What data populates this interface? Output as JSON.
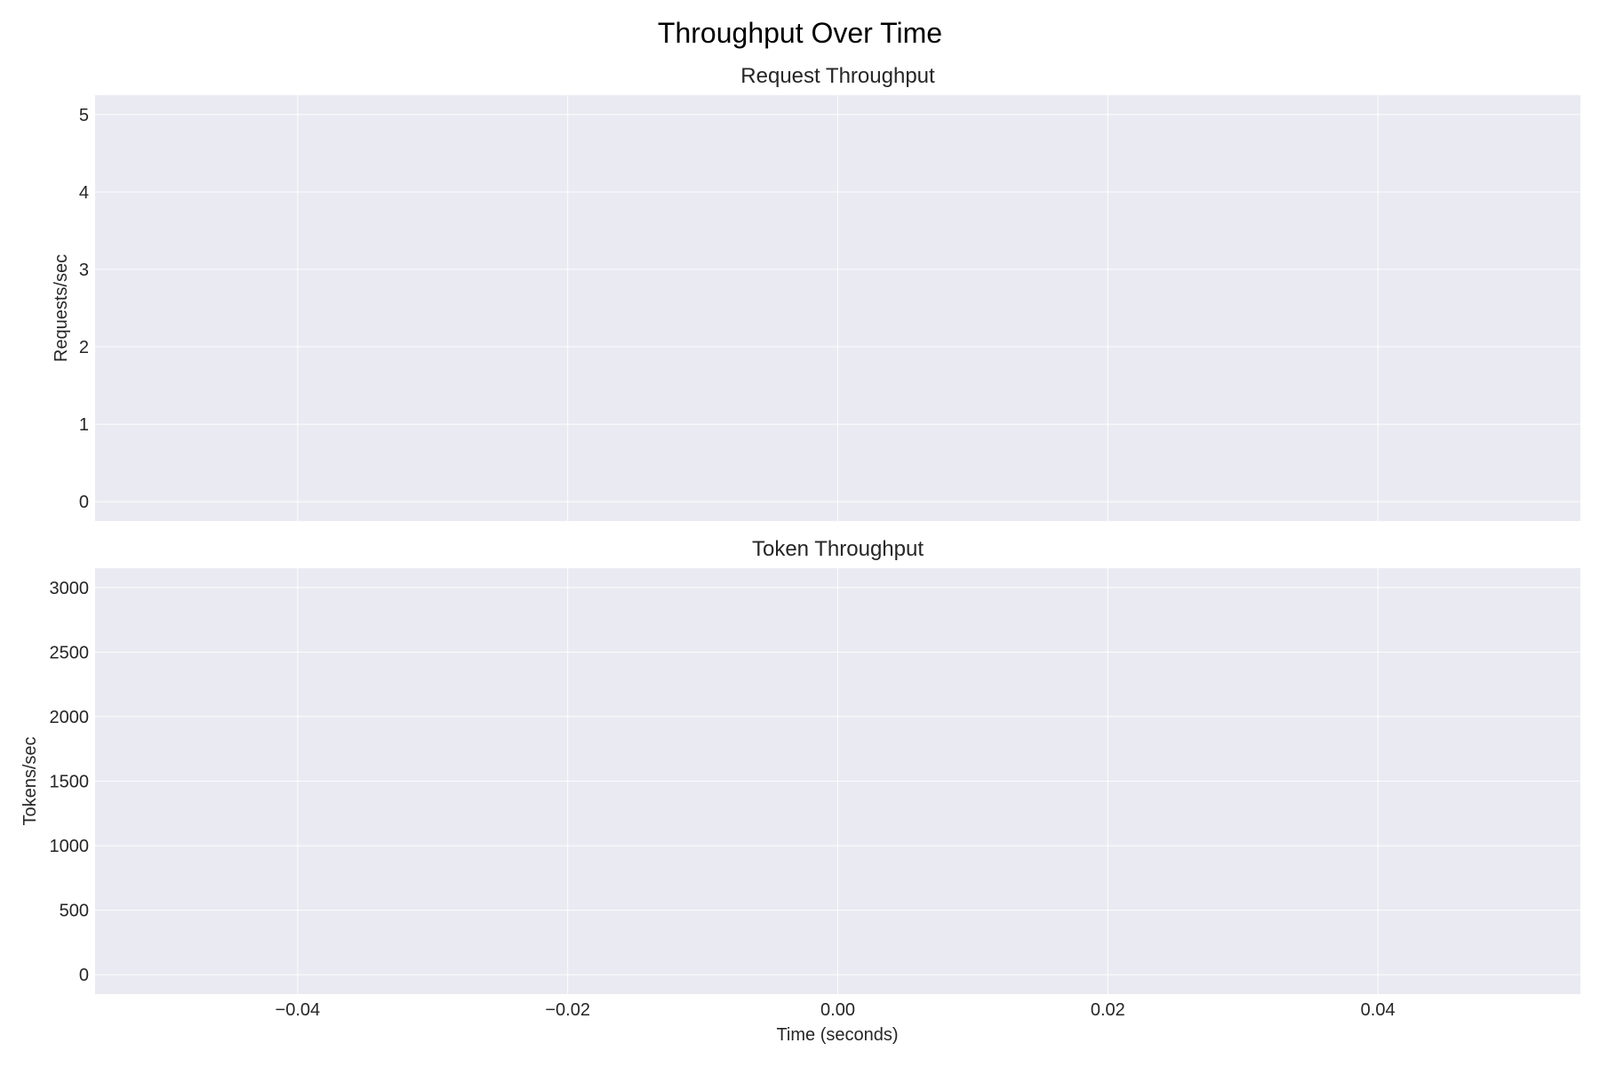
{
  "chart_data": {
    "title": "Throughput Over Time",
    "colors": {
      "background": "#ffffff",
      "axes_face": "#eaeaf2",
      "grid": "#ffffff",
      "text": "#262626"
    },
    "shared_x": {
      "label": "Time (seconds)",
      "ticks": [
        -0.04,
        -0.02,
        0.0,
        0.02,
        0.04
      ],
      "tick_labels": [
        "−0.04",
        "−0.02",
        "0.00",
        "0.02",
        "0.04"
      ],
      "xlim": [
        -0.055,
        0.055
      ]
    },
    "grid": true,
    "legend": "none",
    "panels": [
      {
        "type": "line",
        "title": "Request Throughput",
        "ylabel": "Requests/sec",
        "yticks": [
          0,
          1,
          2,
          3,
          4,
          5
        ],
        "ytick_labels": [
          "0",
          "1",
          "2",
          "3",
          "4",
          "5"
        ],
        "ylim": [
          -0.25,
          5.25
        ],
        "series": []
      },
      {
        "type": "line",
        "title": "Token Throughput",
        "ylabel": "Tokens/sec",
        "yticks": [
          0,
          500,
          1000,
          1500,
          2000,
          2500,
          3000
        ],
        "ytick_labels": [
          "0",
          "500",
          "1000",
          "1500",
          "2000",
          "2500",
          "3000"
        ],
        "ylim": [
          -150,
          3150
        ],
        "series": []
      }
    ]
  }
}
